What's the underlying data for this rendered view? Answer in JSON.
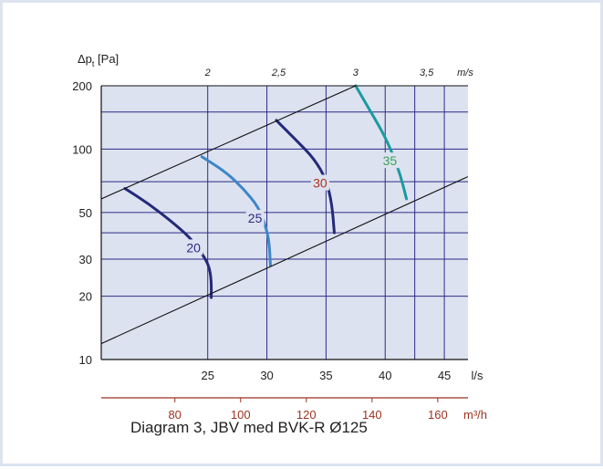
{
  "chart_data": {
    "type": "line",
    "title": "",
    "caption": "Diagram 3, JBV med BVK-R Ø125",
    "ylabel_main": "Δp",
    "ylabel_sub": "t",
    "ylabel_unit": "[Pa]",
    "yscale": "log",
    "ylim": [
      10,
      200
    ],
    "y_ticks": [
      10,
      20,
      30,
      50,
      100,
      200
    ],
    "y_minor": [
      40,
      70,
      150
    ],
    "xlabel": "l/s",
    "xlim": [
      16,
      47
    ],
    "x_ticks": [
      25,
      30,
      35,
      40,
      45
    ],
    "x_ticks_extra_grid": [
      16,
      42.5
    ],
    "x2label": "m³/h",
    "x2_ticks": [
      80,
      100,
      120,
      140,
      160
    ],
    "top_label": "m/s",
    "top_ticks": [
      {
        "label": "2",
        "x": 25
      },
      {
        "label": "2,5",
        "x": 31
      },
      {
        "label": "3",
        "x": 37.5
      },
      {
        "label": "3,5",
        "x": 43.5
      }
    ],
    "boundary_lines": [
      {
        "from": [
          16,
          58
        ],
        "to": [
          37.5,
          200
        ]
      },
      {
        "from": [
          16,
          11.9
        ],
        "to": [
          47,
          74
        ]
      }
    ],
    "series": [
      {
        "label": "20",
        "color": "#232a7a",
        "label_color": "#2b2a86",
        "x": [
          18.0,
          20.0,
          22.0,
          23.5,
          24.5,
          25.1,
          25.3,
          25.3
        ],
        "y": [
          65,
          55,
          45,
          38,
          32,
          28,
          24,
          19.7
        ]
      },
      {
        "label": "25",
        "color": "#3c86c9",
        "label_color": "#2b2a86",
        "x": [
          24.5,
          26.5,
          28.0,
          29.3,
          29.9,
          30.2,
          30.3
        ],
        "y": [
          92,
          78,
          65,
          53,
          43,
          36,
          28
        ]
      },
      {
        "label": "30",
        "color": "#232a7a",
        "label_color": "#b03020",
        "x": [
          30.8,
          32.5,
          34.0,
          35.0,
          35.5,
          35.7
        ],
        "y": [
          137,
          110,
          90,
          72,
          55,
          40
        ]
      },
      {
        "label": "35",
        "color": "#1a9aa0",
        "label_color": "#3aa05a",
        "x": [
          37.5,
          38.5,
          39.8,
          40.6,
          41.3,
          41.8
        ],
        "y": [
          200,
          160,
          120,
          96,
          75,
          58
        ]
      }
    ],
    "series_label_positions": [
      {
        "x": 23.8,
        "y": 34
      },
      {
        "x": 29.0,
        "y": 47
      },
      {
        "x": 34.5,
        "y": 69
      },
      {
        "x": 40.4,
        "y": 88
      }
    ],
    "grid": true,
    "colors": {
      "plot_bg": "#dce2ef",
      "grid": "#2c2c86",
      "x2_axis": "#9c3320",
      "axis": "#111111"
    }
  }
}
